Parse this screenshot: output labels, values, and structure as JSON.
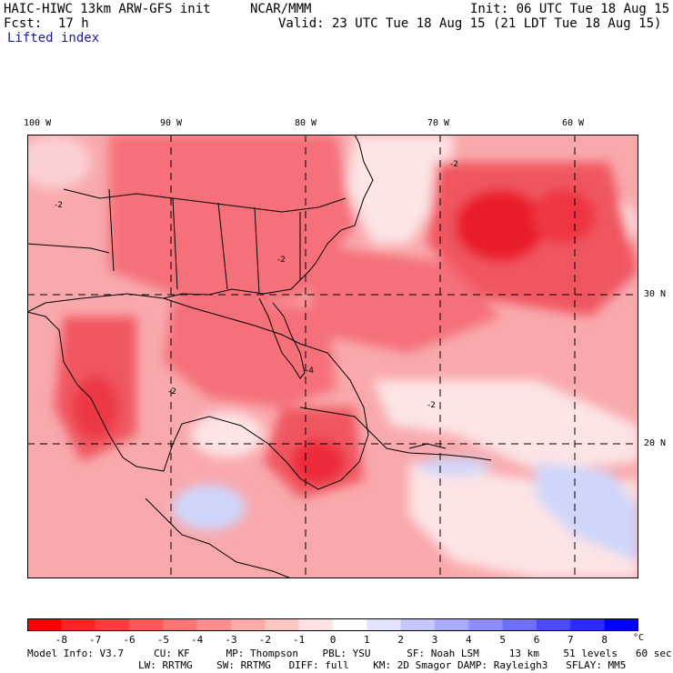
{
  "header": {
    "model_title": "HAIC-HIWC 13km ARW-GFS init",
    "org": "NCAR/MMM",
    "init_text": "Init: 06 UTC Tue 18 Aug 15",
    "fcst_label": "Fcst:",
    "fcst_value": "17 h",
    "valid_text": "Valid: 23 UTC Tue 18 Aug 15 (21 LDT Tue 18 Aug 15)",
    "field_name": "Lifted index"
  },
  "map": {
    "lon_labels": [
      "100 W",
      "90 W",
      "80 W",
      "70 W",
      "60 W"
    ],
    "lat_labels": [
      "30 N",
      "20 N"
    ],
    "contour_labels": [
      "-2",
      "-2",
      "-2",
      "-2",
      "-4",
      "-2"
    ],
    "colors": {
      "very_unstable": "#e8182a",
      "unstable": "#f3565f",
      "moderate": "#f7878c",
      "weak": "#fbb9bc",
      "neutral": "#fde4e5",
      "stable": "#cfd6fb"
    }
  },
  "colorbar": {
    "levels": [
      "-8",
      "-7",
      "-6",
      "-5",
      "-4",
      "-3",
      "-2",
      "-1",
      "0",
      "1",
      "2",
      "3",
      "4",
      "5",
      "6",
      "7",
      "8"
    ],
    "unit": "°C",
    "colors": [
      "#ff0000",
      "#ff2424",
      "#ff3c3c",
      "#ff5a5a",
      "#ff7575",
      "#ff9090",
      "#ffaaaa",
      "#ffc6c6",
      "#ffe3e3",
      "#ffffff",
      "#e3e3ff",
      "#c6c6ff",
      "#aaaaff",
      "#8c8cff",
      "#6f6fff",
      "#4a4aff",
      "#2b2bff",
      "#0000ff"
    ]
  },
  "footer": {
    "line1": "Model Info: V3.7     CU: KF      MP: Thompson    PBL: YSU      SF: Noah LSM     13 km    51 levels   60 sec",
    "line2": "LW: RRTMG    SW: RRTMG   DIFF: full    KM: 2D Smagor DAMP: Rayleigh3   SFLAY: MM5"
  }
}
